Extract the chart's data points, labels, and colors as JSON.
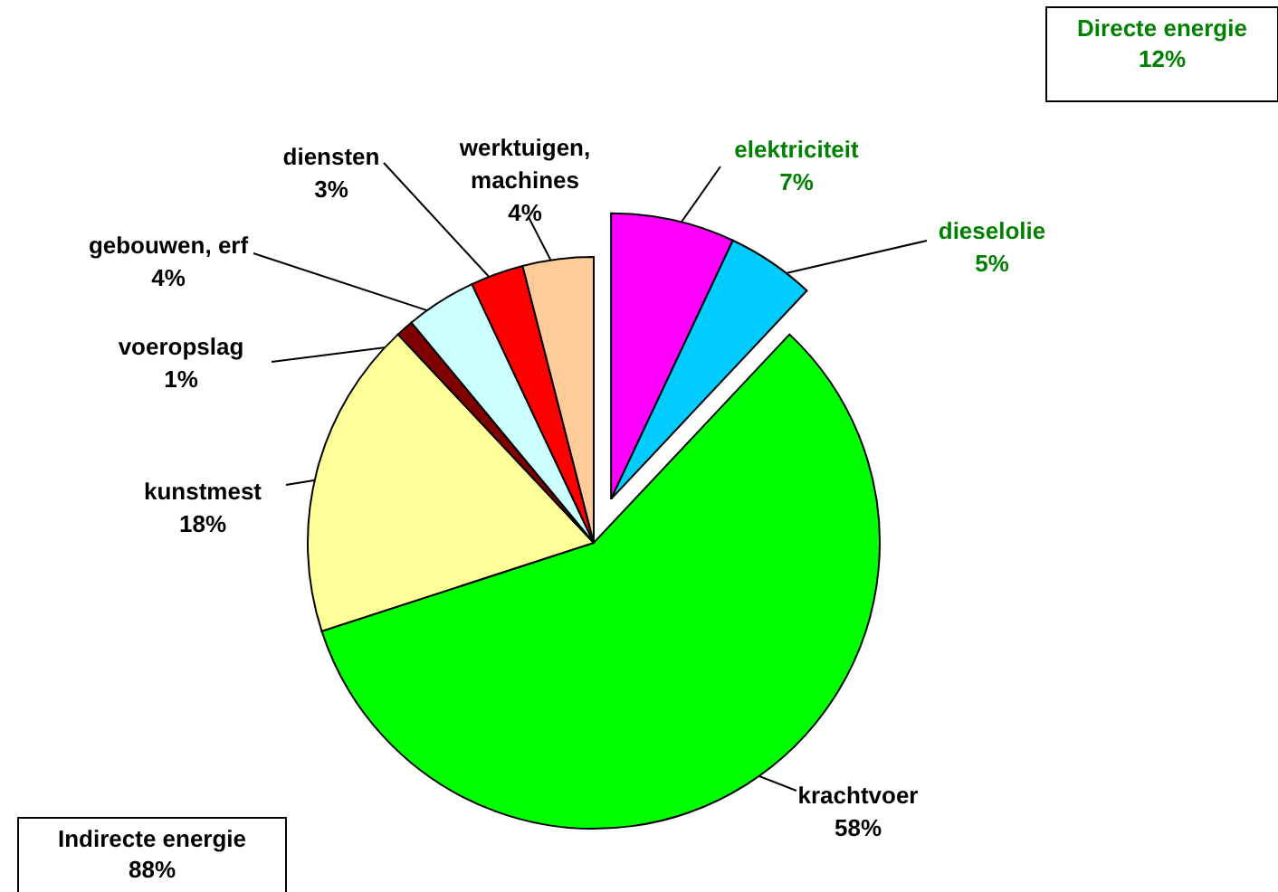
{
  "chart_data": {
    "type": "pie",
    "categories": [
      "elektriciteit",
      "dieselolie",
      "krachtvoer",
      "kunstmest",
      "voeropslag",
      "gebouwen, erf",
      "diensten",
      "werktuigen, machines"
    ],
    "values": [
      7,
      5,
      58,
      18,
      1,
      4,
      3,
      4
    ],
    "value_labels": [
      "7%",
      "5%",
      "58%",
      "18%",
      "1%",
      "4%",
      "3%",
      "4%"
    ],
    "colors": [
      "#ff00ff",
      "#00ccff",
      "#00ff00",
      "#ffff99",
      "#800000",
      "#ccffff",
      "#ff0000",
      "#ffcc99"
    ],
    "annotations": [
      "Directe energie\n12%",
      "Indirecte energie\n88%"
    ]
  }
}
